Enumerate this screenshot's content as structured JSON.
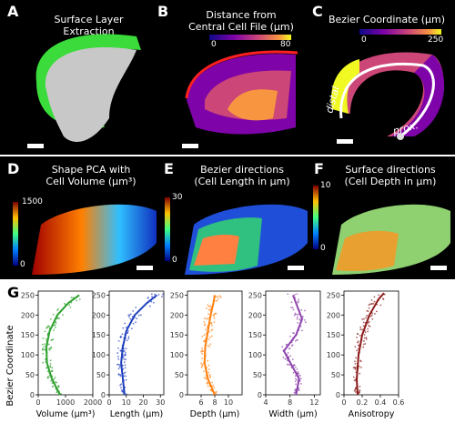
{
  "panels": [
    {
      "label": "A",
      "title": "Surface Layer Extraction"
    },
    {
      "label": "B",
      "title": "Distance from\nCentral Cell File (µm)",
      "cb_min": "0",
      "cb_max": "80"
    },
    {
      "label": "C",
      "title": "Bezier Coordinate (µm)",
      "cb_min": "0",
      "cb_max": "250",
      "annot1": "distal",
      "annot2": "prox."
    },
    {
      "label": "D",
      "title": "Shape PCA with\nCell Volume (µm³)",
      "cb_min": "0",
      "cb_max": "1500"
    },
    {
      "label": "E",
      "title": "Bezier directions\n(Cell Length in µm)",
      "cb_min": "0",
      "cb_max": "30"
    },
    {
      "label": "F",
      "title": "Surface directions\n(Cell Depth in µm)",
      "cb_min": "0",
      "cb_max": "10"
    }
  ],
  "g": {
    "label": "G",
    "ylabel": "Bezier Coordinate",
    "yticks": [
      "0",
      "50",
      "100",
      "150",
      "200",
      "250"
    ]
  },
  "chart_data": [
    {
      "type": "scatter",
      "xlabel": "Volume (µm³)",
      "x_ticks": [
        "0",
        "1000",
        "2000"
      ],
      "xlim": [
        0,
        2000
      ],
      "ylim": [
        0,
        260
      ],
      "color": "#2ca02c",
      "trend": [
        [
          800,
          0
        ],
        [
          500,
          40
        ],
        [
          320,
          80
        ],
        [
          300,
          120
        ],
        [
          420,
          160
        ],
        [
          700,
          200
        ],
        [
          1100,
          230
        ],
        [
          1500,
          250
        ]
      ]
    },
    {
      "type": "scatter",
      "xlabel": "Length (µm)",
      "x_ticks": [
        "0",
        "10",
        "20",
        "30"
      ],
      "xlim": [
        0,
        32
      ],
      "ylim": [
        0,
        260
      ],
      "color": "#1f3fbf",
      "trend": [
        [
          9,
          0
        ],
        [
          8,
          40
        ],
        [
          7,
          80
        ],
        [
          8,
          120
        ],
        [
          10,
          160
        ],
        [
          15,
          200
        ],
        [
          22,
          230
        ],
        [
          28,
          250
        ]
      ]
    },
    {
      "type": "scatter",
      "xlabel": "Depth (µm)",
      "x_ticks": [
        "6",
        "8",
        "10"
      ],
      "xlim": [
        4,
        12
      ],
      "ylim": [
        0,
        260
      ],
      "color": "#ff7f0e",
      "trend": [
        [
          8,
          0
        ],
        [
          7,
          40
        ],
        [
          6.5,
          80
        ],
        [
          6.6,
          120
        ],
        [
          7,
          160
        ],
        [
          7.4,
          200
        ],
        [
          7.8,
          230
        ],
        [
          8,
          250
        ]
      ]
    },
    {
      "type": "scatter",
      "xlabel": "Width (µm)",
      "x_ticks": [
        "4",
        "8",
        "12"
      ],
      "xlim": [
        4,
        13
      ],
      "ylim": [
        0,
        260
      ],
      "color": "#8e44ad",
      "trend": [
        [
          9,
          0
        ],
        [
          9.5,
          40
        ],
        [
          7,
          110
        ],
        [
          9,
          150
        ],
        [
          10,
          190
        ],
        [
          9,
          230
        ],
        [
          8.5,
          250
        ]
      ]
    },
    {
      "type": "scatter",
      "xlabel": "Anisotropy",
      "x_ticks": [
        "0",
        "0.2",
        "0.4",
        "0.6"
      ],
      "xlim": [
        0,
        0.6
      ],
      "ylim": [
        0,
        260
      ],
      "color": "#8b1a1a",
      "trend": [
        [
          0.15,
          0
        ],
        [
          0.14,
          40
        ],
        [
          0.16,
          100
        ],
        [
          0.2,
          150
        ],
        [
          0.28,
          200
        ],
        [
          0.38,
          240
        ],
        [
          0.44,
          255
        ]
      ]
    }
  ]
}
